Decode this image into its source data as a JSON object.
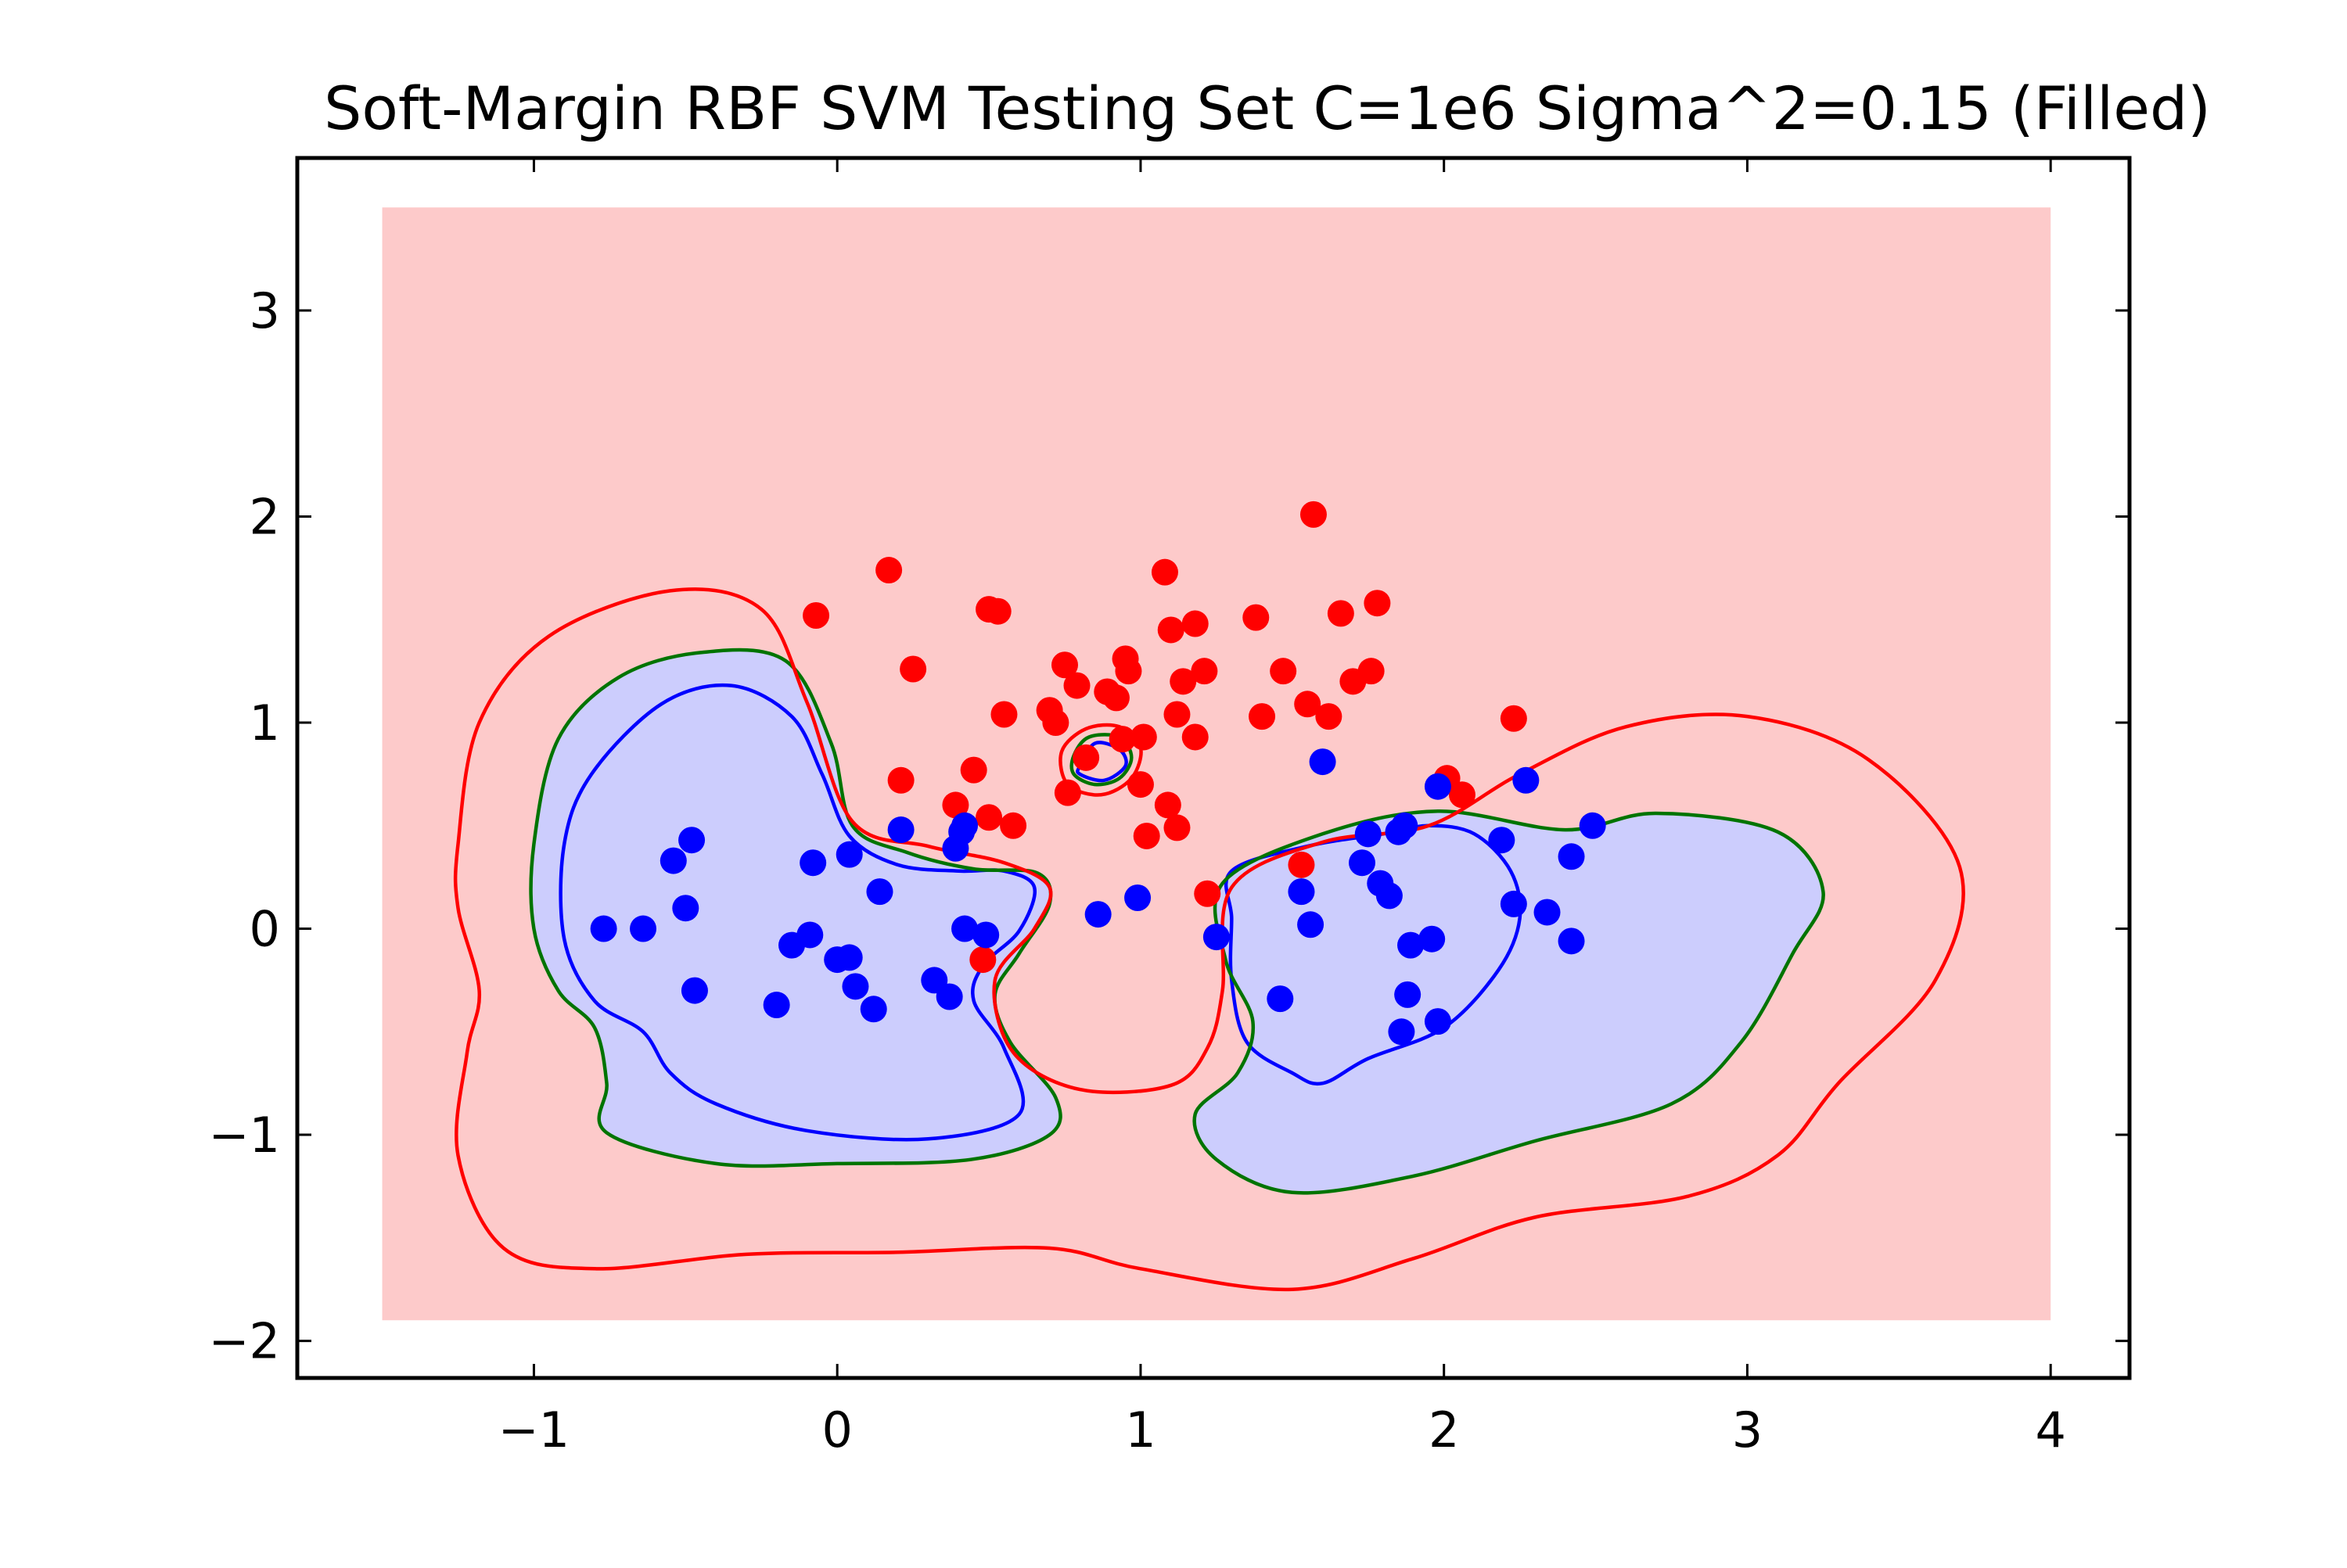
{
  "chart_data": {
    "type": "scatter",
    "title": "Soft-Margin RBF SVM Testing Set C=1e6 Sigma^2=0.15 (Filled)",
    "xlabel": "",
    "ylabel": "",
    "xlim": [
      -1.78,
      4.26
    ],
    "ylim": [
      -2.18,
      3.74
    ],
    "xticks": [
      -1,
      0,
      1,
      2,
      3,
      4
    ],
    "yticks": [
      -2,
      -1,
      0,
      1,
      2,
      3
    ],
    "xtick_labels": [
      "−1",
      "0",
      "1",
      "2",
      "3",
      "4"
    ],
    "ytick_labels": [
      "−2",
      "−1",
      "0",
      "1",
      "2",
      "3"
    ],
    "grid": false,
    "legend": "none",
    "background_region": {
      "x": [
        -1.5,
        4.0
      ],
      "y": [
        -1.9,
        3.5
      ],
      "color": "#fdcaca"
    },
    "colors": {
      "positive_region": "#fdcaca",
      "negative_region": "#cccdfd",
      "class_positive": "#ff0000",
      "class_negative": "#0000ff",
      "contour_plus_one": "#ff0000",
      "contour_zero": "#007400",
      "contour_minus_one": "#0000ff"
    },
    "contours": [
      {
        "level": "minus_one",
        "fill": false,
        "color": "#0000ff",
        "paths": [
          [
            [
              -0.9,
              0.41
            ],
            [
              -0.81,
              0.75
            ],
            [
              -0.58,
              1.09
            ],
            [
              -0.35,
              1.18
            ],
            [
              -0.15,
              1.03
            ],
            [
              -0.05,
              0.75
            ],
            [
              0.04,
              0.45
            ],
            [
              0.2,
              0.31
            ],
            [
              0.4,
              0.28
            ],
            [
              0.55,
              0.28
            ],
            [
              0.65,
              0.2
            ],
            [
              0.6,
              -0.01
            ],
            [
              0.48,
              -0.18
            ],
            [
              0.45,
              -0.35
            ],
            [
              0.55,
              -0.58
            ],
            [
              0.6,
              -0.9
            ],
            [
              0.3,
              -1.02
            ],
            [
              -0.1,
              -0.98
            ],
            [
              -0.4,
              -0.85
            ],
            [
              -0.55,
              -0.7
            ],
            [
              -0.64,
              -0.5
            ],
            [
              -0.8,
              -0.35
            ],
            [
              -0.9,
              -0.05
            ],
            [
              -0.9,
              0.41
            ]
          ],
          [
            [
              0.8,
              0.79
            ],
            [
              0.85,
              0.9
            ],
            [
              0.93,
              0.87
            ],
            [
              0.95,
              0.79
            ],
            [
              0.88,
              0.72
            ],
            [
              0.8,
              0.75
            ],
            [
              0.8,
              0.79
            ]
          ],
          [
            [
              1.3,
              0.28
            ],
            [
              1.55,
              0.4
            ],
            [
              1.8,
              0.46
            ],
            [
              1.95,
              0.5
            ],
            [
              2.1,
              0.46
            ],
            [
              2.22,
              0.28
            ],
            [
              2.25,
              0.05
            ],
            [
              2.18,
              -0.2
            ],
            [
              2.0,
              -0.48
            ],
            [
              1.75,
              -0.63
            ],
            [
              1.6,
              -0.75
            ],
            [
              1.5,
              -0.7
            ],
            [
              1.35,
              -0.55
            ],
            [
              1.3,
              -0.25
            ],
            [
              1.3,
              0.05
            ],
            [
              1.3,
              0.28
            ]
          ]
        ]
      },
      {
        "level": "zero",
        "fill": true,
        "color": "#007400",
        "paths": [
          [
            [
              -1.0,
              0.41
            ],
            [
              -0.92,
              0.92
            ],
            [
              -0.72,
              1.22
            ],
            [
              -0.45,
              1.34
            ],
            [
              -0.17,
              1.3
            ],
            [
              -0.02,
              0.9
            ],
            [
              0.05,
              0.5
            ],
            [
              0.23,
              0.37
            ],
            [
              0.45,
              0.29
            ],
            [
              0.66,
              0.27
            ],
            [
              0.7,
              0.12
            ],
            [
              0.6,
              -0.12
            ],
            [
              0.52,
              -0.32
            ],
            [
              0.57,
              -0.55
            ],
            [
              0.72,
              -0.82
            ],
            [
              0.7,
              -1.0
            ],
            [
              0.44,
              -1.12
            ],
            [
              0.0,
              -1.14
            ],
            [
              -0.4,
              -1.14
            ],
            [
              -0.76,
              -0.99
            ],
            [
              -0.76,
              -0.75
            ],
            [
              -0.8,
              -0.48
            ],
            [
              -0.92,
              -0.3
            ],
            [
              -1.0,
              0.0
            ],
            [
              -1.0,
              0.41
            ]
          ],
          [
            [
              0.78,
              0.84
            ],
            [
              0.83,
              0.93
            ],
            [
              0.93,
              0.93
            ],
            [
              0.97,
              0.83
            ],
            [
              0.93,
              0.73
            ],
            [
              0.85,
              0.7
            ],
            [
              0.78,
              0.75
            ],
            [
              0.78,
              0.84
            ]
          ],
          [
            [
              1.27,
              0.22
            ],
            [
              1.6,
              0.46
            ],
            [
              1.98,
              0.57
            ],
            [
              2.4,
              0.48
            ],
            [
              2.7,
              0.56
            ],
            [
              3.1,
              0.47
            ],
            [
              3.25,
              0.18
            ],
            [
              3.15,
              -0.12
            ],
            [
              2.98,
              -0.55
            ],
            [
              2.75,
              -0.85
            ],
            [
              2.3,
              -1.03
            ],
            [
              1.9,
              -1.2
            ],
            [
              1.5,
              -1.28
            ],
            [
              1.25,
              -1.12
            ],
            [
              1.18,
              -0.9
            ],
            [
              1.32,
              -0.7
            ],
            [
              1.37,
              -0.45
            ],
            [
              1.28,
              -0.15
            ],
            [
              1.27,
              0.22
            ]
          ]
        ]
      },
      {
        "level": "plus_one",
        "fill": false,
        "color": "#ff0000",
        "paths": [
          [
            [
              -1.25,
              0.41
            ],
            [
              -1.18,
              1.0
            ],
            [
              -0.95,
              1.42
            ],
            [
              -0.55,
              1.64
            ],
            [
              -0.25,
              1.55
            ],
            [
              -0.1,
              1.1
            ],
            [
              0.05,
              0.52
            ],
            [
              0.3,
              0.4
            ],
            [
              0.55,
              0.32
            ],
            [
              0.7,
              0.2
            ],
            [
              0.65,
              0.0
            ],
            [
              0.52,
              -0.25
            ],
            [
              0.58,
              -0.6
            ],
            [
              0.8,
              -0.78
            ],
            [
              1.1,
              -0.76
            ],
            [
              1.22,
              -0.58
            ],
            [
              1.27,
              -0.3
            ],
            [
              1.3,
              0.2
            ],
            [
              1.6,
              0.42
            ],
            [
              1.95,
              0.5
            ],
            [
              2.25,
              0.75
            ],
            [
              2.6,
              0.98
            ],
            [
              3.0,
              1.03
            ],
            [
              3.4,
              0.82
            ],
            [
              3.7,
              0.3
            ],
            [
              3.62,
              -0.25
            ],
            [
              3.3,
              -0.75
            ],
            [
              3.1,
              -1.1
            ],
            [
              2.8,
              -1.3
            ],
            [
              2.3,
              -1.4
            ],
            [
              1.9,
              -1.6
            ],
            [
              1.5,
              -1.75
            ],
            [
              1.0,
              -1.65
            ],
            [
              0.7,
              -1.55
            ],
            [
              0.2,
              -1.57
            ],
            [
              -0.3,
              -1.58
            ],
            [
              -0.8,
              -1.65
            ],
            [
              -1.1,
              -1.55
            ],
            [
              -1.25,
              -1.1
            ],
            [
              -1.22,
              -0.6
            ],
            [
              -1.18,
              -0.3
            ],
            [
              -1.25,
              0.1
            ],
            [
              -1.25,
              0.41
            ]
          ],
          [
            [
              0.74,
              0.86
            ],
            [
              0.82,
              0.97
            ],
            [
              0.93,
              0.98
            ],
            [
              1.0,
              0.88
            ],
            [
              0.97,
              0.73
            ],
            [
              0.87,
              0.65
            ],
            [
              0.76,
              0.7
            ],
            [
              0.74,
              0.86
            ]
          ]
        ]
      }
    ],
    "series": [
      {
        "class": "positive",
        "color": "#ff0000",
        "points": [
          [
            -0.07,
            1.52
          ],
          [
            0.17,
            1.74
          ],
          [
            0.25,
            1.26
          ],
          [
            0.21,
            0.72
          ],
          [
            0.39,
            0.6
          ],
          [
            0.45,
            0.77
          ],
          [
            0.5,
            0.54
          ],
          [
            0.58,
            0.5
          ],
          [
            0.55,
            1.04
          ],
          [
            0.5,
            1.55
          ],
          [
            0.53,
            1.54
          ],
          [
            0.7,
            1.06
          ],
          [
            0.72,
            1.0
          ],
          [
            0.75,
            1.28
          ],
          [
            0.79,
            1.18
          ],
          [
            0.82,
            0.83
          ],
          [
            0.76,
            0.66
          ],
          [
            0.89,
            1.15
          ],
          [
            0.92,
            1.12
          ],
          [
            0.95,
            1.31
          ],
          [
            0.96,
            1.25
          ],
          [
            0.94,
            0.92
          ],
          [
            1.01,
            0.93
          ],
          [
            1.0,
            0.7
          ],
          [
            1.02,
            0.45
          ],
          [
            1.09,
            0.6
          ],
          [
            1.12,
            0.49
          ],
          [
            1.12,
            1.04
          ],
          [
            1.14,
            1.2
          ],
          [
            1.1,
            1.45
          ],
          [
            1.18,
            0.93
          ],
          [
            1.18,
            1.48
          ],
          [
            1.21,
            1.25
          ],
          [
            1.08,
            1.73
          ],
          [
            1.22,
            0.17
          ],
          [
            1.38,
            1.51
          ],
          [
            1.4,
            1.03
          ],
          [
            1.47,
            1.25
          ],
          [
            1.53,
            0.31
          ],
          [
            1.55,
            1.09
          ],
          [
            1.57,
            2.01
          ],
          [
            1.62,
            1.03
          ],
          [
            1.66,
            1.53
          ],
          [
            1.7,
            1.2
          ],
          [
            1.76,
            1.25
          ],
          [
            1.78,
            1.58
          ],
          [
            2.01,
            0.73
          ],
          [
            2.06,
            0.65
          ],
          [
            2.23,
            1.02
          ],
          [
            0.48,
            -0.15
          ]
        ]
      },
      {
        "class": "negative",
        "color": "#0000ff",
        "points": [
          [
            -0.77,
            0.0
          ],
          [
            -0.64,
            0.0
          ],
          [
            -0.54,
            0.33
          ],
          [
            -0.48,
            0.43
          ],
          [
            -0.5,
            0.1
          ],
          [
            -0.47,
            -0.3
          ],
          [
            -0.2,
            -0.37
          ],
          [
            -0.15,
            -0.08
          ],
          [
            -0.09,
            -0.03
          ],
          [
            -0.08,
            0.32
          ],
          [
            0.04,
            0.36
          ],
          [
            0.0,
            -0.15
          ],
          [
            0.04,
            -0.14
          ],
          [
            0.06,
            -0.28
          ],
          [
            0.12,
            -0.39
          ],
          [
            0.14,
            0.18
          ],
          [
            0.21,
            0.48
          ],
          [
            0.32,
            -0.25
          ],
          [
            0.37,
            -0.33
          ],
          [
            0.39,
            0.39
          ],
          [
            0.41,
            0.47
          ],
          [
            0.42,
            0.5
          ],
          [
            0.42,
            0.0
          ],
          [
            0.49,
            -0.03
          ],
          [
            0.86,
            0.07
          ],
          [
            0.99,
            0.15
          ],
          [
            1.25,
            -0.04
          ],
          [
            1.46,
            -0.34
          ],
          [
            1.53,
            0.18
          ],
          [
            1.56,
            0.02
          ],
          [
            1.6,
            0.81
          ],
          [
            1.73,
            0.32
          ],
          [
            1.75,
            0.46
          ],
          [
            1.79,
            0.22
          ],
          [
            1.82,
            0.16
          ],
          [
            1.85,
            0.47
          ],
          [
            1.87,
            0.5
          ],
          [
            1.86,
            -0.5
          ],
          [
            1.88,
            -0.32
          ],
          [
            1.89,
            -0.08
          ],
          [
            1.96,
            -0.05
          ],
          [
            1.98,
            -0.45
          ],
          [
            1.98,
            0.69
          ],
          [
            2.19,
            0.43
          ],
          [
            2.23,
            0.12
          ],
          [
            2.27,
            0.72
          ],
          [
            2.34,
            0.08
          ],
          [
            2.42,
            0.35
          ],
          [
            2.42,
            -0.06
          ],
          [
            2.49,
            0.5
          ]
        ]
      }
    ]
  }
}
